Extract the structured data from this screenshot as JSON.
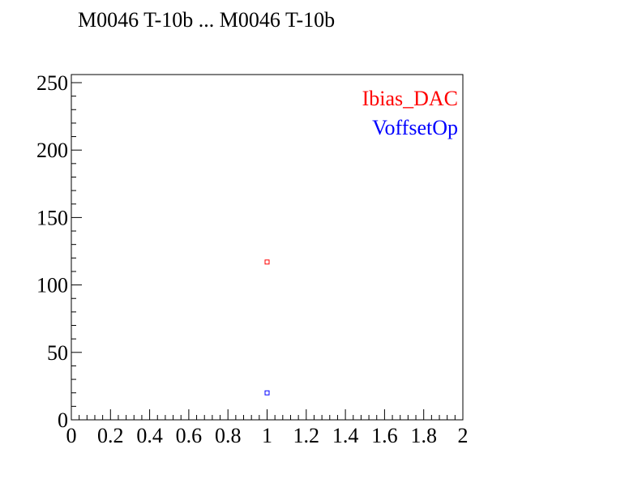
{
  "chart_data": {
    "type": "scatter",
    "title": "M0046 T-10b ... M0046 T-10b",
    "xlabel": "",
    "ylabel": "",
    "xlim": [
      0,
      2
    ],
    "ylim": [
      0,
      256
    ],
    "x_ticks": [
      "0",
      "0.2",
      "0.4",
      "0.6",
      "0.8",
      "1",
      "1.2",
      "1.4",
      "1.6",
      "1.8",
      "2"
    ],
    "y_ticks": [
      "0",
      "50",
      "100",
      "150",
      "200",
      "250"
    ],
    "grid": false,
    "legend_position": "top-right",
    "marker": "open-square",
    "series": [
      {
        "name": "Ibias_DAC",
        "color": "#ff0000",
        "points": [
          {
            "x": 1,
            "y": 117
          }
        ]
      },
      {
        "name": "VoffsetOp",
        "color": "#0000ff",
        "points": [
          {
            "x": 1,
            "y": 20
          }
        ]
      }
    ]
  }
}
